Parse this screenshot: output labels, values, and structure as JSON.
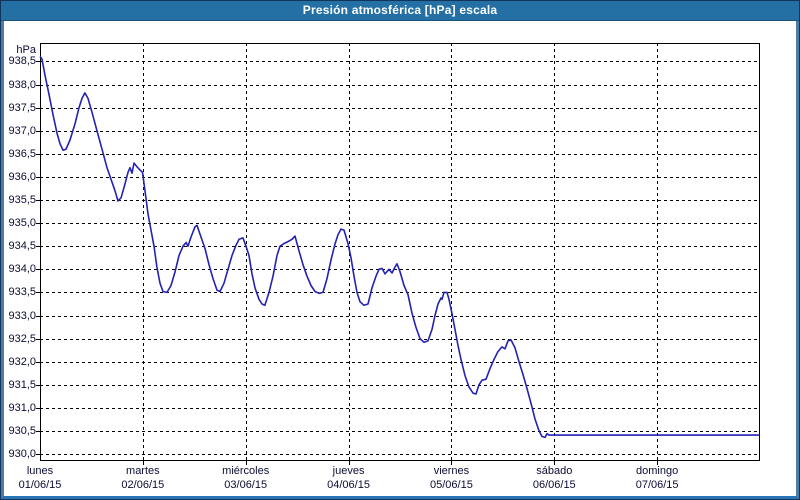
{
  "window": {
    "title": "Presión atmosférica [hPa] escala"
  },
  "colors": {
    "titlebar": "#2470A5",
    "frame": "#4F7BA7",
    "bottom_stripe": "#2874B4",
    "line": "#2222B4",
    "grid": "#000000",
    "label_text": "#0B0B33",
    "plot_bg": "#FFFFFF"
  },
  "chart_data": {
    "type": "line",
    "title": "Presión atmosférica [hPa] escala",
    "ylabel": "hPa",
    "unit_label": "hPa",
    "grid": "dashed",
    "legend": "none",
    "ylim": [
      929.85,
      938.9
    ],
    "y_ticks": [
      938.5,
      938.0,
      937.5,
      937.0,
      936.5,
      936.0,
      935.5,
      935.0,
      934.5,
      934.0,
      933.5,
      933.0,
      932.5,
      932.0,
      931.5,
      931.0,
      930.5,
      930.0
    ],
    "x_days": [
      {
        "name": "lunes",
        "date": "01/06/15"
      },
      {
        "name": "martes",
        "date": "02/06/15"
      },
      {
        "name": "miércoles",
        "date": "03/06/15"
      },
      {
        "name": "jueves",
        "date": "04/06/15"
      },
      {
        "name": "viernes",
        "date": "05/06/15"
      },
      {
        "name": "sábado",
        "date": "06/06/15"
      },
      {
        "name": "domingo",
        "date": "07/06/15"
      }
    ],
    "x_unit": "days_from_monday_start",
    "series": [
      {
        "name": "presión atmosférica",
        "points": [
          [
            0.005,
            938.6
          ],
          [
            0.019,
            938.55
          ],
          [
            0.049,
            938.2
          ],
          [
            0.087,
            937.8
          ],
          [
            0.126,
            937.35
          ],
          [
            0.165,
            936.95
          ],
          [
            0.194,
            936.72
          ],
          [
            0.224,
            936.58
          ],
          [
            0.253,
            936.6
          ],
          [
            0.292,
            936.8
          ],
          [
            0.34,
            937.15
          ],
          [
            0.379,
            937.5
          ],
          [
            0.408,
            937.7
          ],
          [
            0.437,
            937.82
          ],
          [
            0.467,
            937.7
          ],
          [
            0.506,
            937.4
          ],
          [
            0.554,
            937.0
          ],
          [
            0.603,
            936.6
          ],
          [
            0.651,
            936.2
          ],
          [
            0.69,
            935.95
          ],
          [
            0.729,
            935.7
          ],
          [
            0.758,
            935.48
          ],
          [
            0.788,
            935.55
          ],
          [
            0.826,
            935.85
          ],
          [
            0.856,
            936.1
          ],
          [
            0.875,
            936.2
          ],
          [
            0.894,
            936.08
          ],
          [
            0.914,
            936.3
          ],
          [
            0.943,
            936.22
          ],
          [
            0.972,
            936.15
          ],
          [
            0.997,
            936.1
          ],
          [
            1.021,
            935.7
          ],
          [
            1.05,
            935.2
          ],
          [
            1.079,
            934.85
          ],
          [
            1.108,
            934.5
          ],
          [
            1.137,
            934.05
          ],
          [
            1.167,
            933.7
          ],
          [
            1.196,
            933.52
          ],
          [
            1.235,
            933.5
          ],
          [
            1.274,
            933.65
          ],
          [
            1.313,
            933.95
          ],
          [
            1.351,
            934.3
          ],
          [
            1.39,
            934.5
          ],
          [
            1.42,
            934.58
          ],
          [
            1.439,
            934.5
          ],
          [
            1.468,
            934.7
          ],
          [
            1.507,
            934.92
          ],
          [
            1.526,
            934.95
          ],
          [
            1.565,
            934.7
          ],
          [
            1.604,
            934.45
          ],
          [
            1.643,
            934.1
          ],
          [
            1.682,
            933.8
          ],
          [
            1.721,
            933.55
          ],
          [
            1.75,
            933.52
          ],
          [
            1.789,
            933.7
          ],
          [
            1.828,
            934.0
          ],
          [
            1.867,
            934.3
          ],
          [
            1.906,
            934.52
          ],
          [
            1.935,
            934.65
          ],
          [
            1.974,
            934.68
          ],
          [
            2.003,
            934.5
          ],
          [
            2.032,
            934.3
          ],
          [
            2.061,
            933.9
          ],
          [
            2.09,
            933.6
          ],
          [
            2.129,
            933.35
          ],
          [
            2.158,
            933.25
          ],
          [
            2.187,
            933.22
          ],
          [
            2.226,
            933.5
          ],
          [
            2.265,
            933.85
          ],
          [
            2.304,
            934.3
          ],
          [
            2.333,
            934.5
          ],
          [
            2.372,
            934.56
          ],
          [
            2.411,
            934.6
          ],
          [
            2.45,
            934.65
          ],
          [
            2.479,
            934.72
          ],
          [
            2.518,
            934.4
          ],
          [
            2.557,
            934.1
          ],
          [
            2.596,
            933.85
          ],
          [
            2.635,
            933.65
          ],
          [
            2.674,
            933.52
          ],
          [
            2.713,
            933.48
          ],
          [
            2.751,
            933.5
          ],
          [
            2.79,
            933.8
          ],
          [
            2.829,
            934.2
          ],
          [
            2.868,
            934.55
          ],
          [
            2.897,
            934.75
          ],
          [
            2.926,
            934.87
          ],
          [
            2.956,
            934.85
          ],
          [
            2.995,
            934.55
          ],
          [
            3.024,
            934.25
          ],
          [
            3.053,
            933.85
          ],
          [
            3.082,
            933.5
          ],
          [
            3.111,
            933.3
          ],
          [
            3.15,
            933.22
          ],
          [
            3.189,
            933.25
          ],
          [
            3.228,
            933.6
          ],
          [
            3.267,
            933.85
          ],
          [
            3.296,
            934.0
          ],
          [
            3.325,
            934.02
          ],
          [
            3.354,
            933.9
          ],
          [
            3.393,
            934.0
          ],
          [
            3.422,
            933.92
          ],
          [
            3.451,
            934.05
          ],
          [
            3.471,
            934.12
          ],
          [
            3.5,
            933.95
          ],
          [
            3.539,
            933.65
          ],
          [
            3.578,
            933.45
          ],
          [
            3.617,
            933.05
          ],
          [
            3.655,
            932.75
          ],
          [
            3.694,
            932.5
          ],
          [
            3.733,
            932.42
          ],
          [
            3.772,
            932.45
          ],
          [
            3.811,
            932.7
          ],
          [
            3.84,
            933.0
          ],
          [
            3.869,
            933.25
          ],
          [
            3.899,
            933.38
          ],
          [
            3.908,
            933.35
          ],
          [
            3.928,
            933.5
          ],
          [
            3.957,
            933.5
          ],
          [
            3.976,
            933.35
          ],
          [
            4.005,
            933.05
          ],
          [
            4.035,
            932.7
          ],
          [
            4.064,
            932.35
          ],
          [
            4.093,
            932.05
          ],
          [
            4.132,
            931.7
          ],
          [
            4.171,
            931.45
          ],
          [
            4.21,
            931.32
          ],
          [
            4.239,
            931.3
          ],
          [
            4.268,
            931.5
          ],
          [
            4.297,
            931.6
          ],
          [
            4.336,
            931.62
          ],
          [
            4.375,
            931.85
          ],
          [
            4.414,
            932.05
          ],
          [
            4.453,
            932.22
          ],
          [
            4.492,
            932.32
          ],
          [
            4.521,
            932.28
          ],
          [
            4.55,
            932.45
          ],
          [
            4.579,
            932.47
          ],
          [
            4.618,
            932.3
          ],
          [
            4.657,
            932.0
          ],
          [
            4.696,
            931.72
          ],
          [
            4.735,
            931.42
          ],
          [
            4.774,
            931.1
          ],
          [
            4.813,
            930.75
          ],
          [
            4.852,
            930.5
          ],
          [
            4.881,
            930.38
          ],
          [
            4.91,
            930.36
          ],
          [
            4.929,
            930.44
          ],
          [
            4.949,
            930.41
          ],
          [
            5.5,
            930.41
          ],
          [
            6.2,
            930.41
          ],
          [
            6.99,
            930.41
          ]
        ]
      }
    ]
  }
}
